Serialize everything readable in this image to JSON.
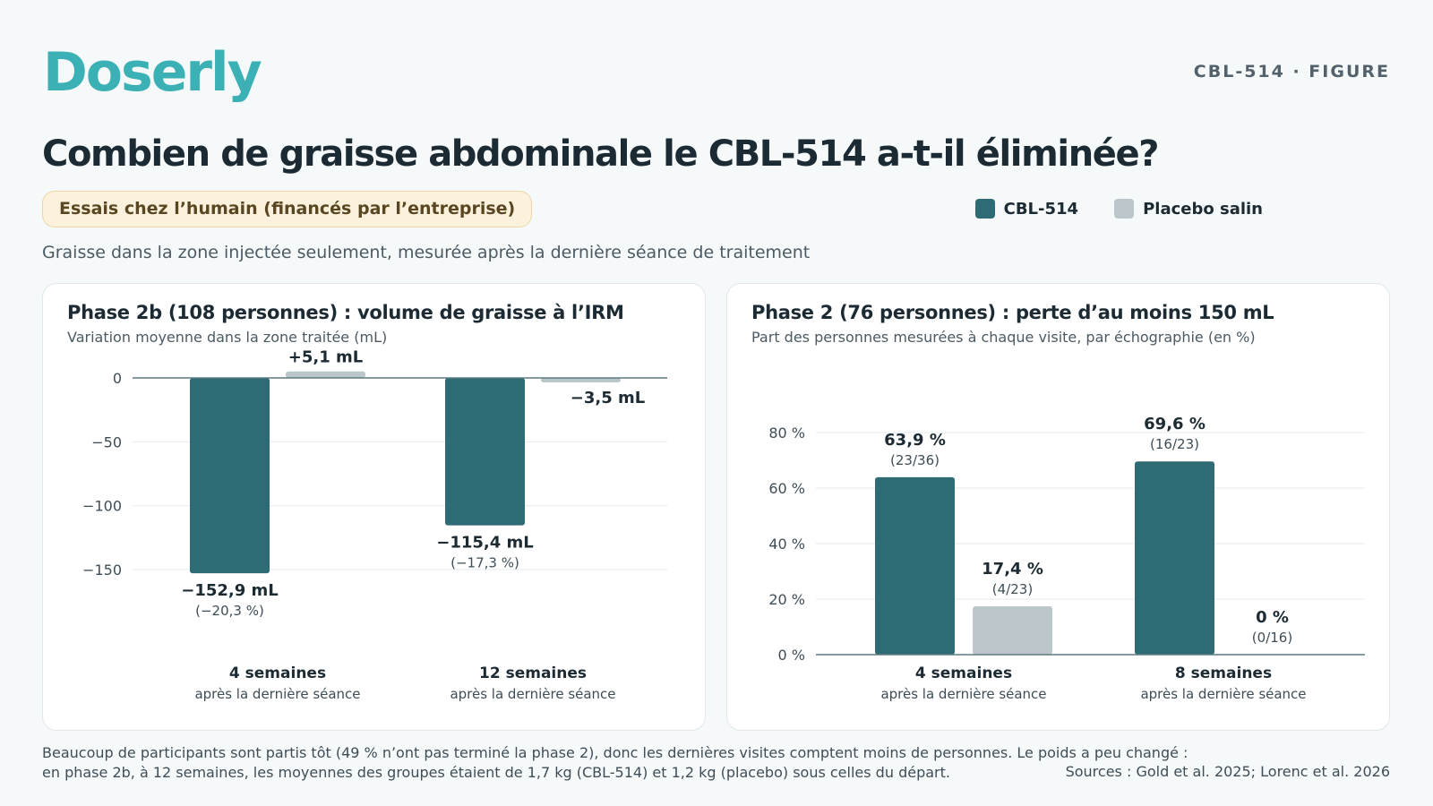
{
  "header": {
    "logo": "Doserly",
    "figure_tag": "CBL-514 · FIGURE",
    "title": "Combien de graisse abdominale le CBL-514 a-t-il éliminée?",
    "badge": "Essais chez l’humain (financés par l’entreprise)",
    "subtitle": "Graisse dans la zone injectée seulement, mesurée après la dernière séance de traitement"
  },
  "legend": [
    {
      "label": "CBL-514",
      "color": "#2e6b74"
    },
    {
      "label": "Placebo salin",
      "color": "#bac6ca"
    }
  ],
  "chart_data": [
    {
      "type": "bar",
      "title": "Phase 2b (108 personnes) : volume de graisse à l’IRM",
      "subtitle": "Variation moyenne dans la zone traitée (mL)",
      "categories": [
        {
          "label": "4 semaines",
          "sublabel": "après la dernière séance"
        },
        {
          "label": "12 semaines",
          "sublabel": "après la dernière séance"
        }
      ],
      "series": [
        {
          "name": "CBL-514",
          "color": "#2e6b74",
          "values": [
            -152.9,
            -115.4
          ],
          "labels": [
            "−152,9 mL",
            "−115,4 mL"
          ],
          "sublabels": [
            "(−20,3 %)",
            "(−17,3 %)"
          ]
        },
        {
          "name": "Placebo salin",
          "color": "#bac6ca",
          "values": [
            5.1,
            -3.5
          ],
          "labels": [
            "+5,1 mL",
            "−3,5 mL"
          ],
          "sublabels": [
            "",
            ""
          ]
        }
      ],
      "yticks": [
        0,
        -50,
        -100,
        -150
      ],
      "ytick_labels": [
        "0",
        "−50",
        "−100",
        "−150"
      ],
      "ylim": [
        -150,
        0
      ],
      "grid": true
    },
    {
      "type": "bar",
      "title": "Phase 2 (76 personnes) : perte d’au moins 150 mL",
      "subtitle": "Part des personnes mesurées à chaque visite, par échographie (en %)",
      "categories": [
        {
          "label": "4 semaines",
          "sublabel": "après la dernière séance"
        },
        {
          "label": "8 semaines",
          "sublabel": "après la dernière séance"
        }
      ],
      "series": [
        {
          "name": "CBL-514",
          "color": "#2e6b74",
          "values": [
            63.9,
            69.6
          ],
          "labels": [
            "63,9 %",
            "69,6 %"
          ],
          "sublabels": [
            "(23/36)",
            "(16/23)"
          ]
        },
        {
          "name": "Placebo salin",
          "color": "#bac6ca",
          "values": [
            17.4,
            0
          ],
          "labels": [
            "17,4 %",
            "0 %"
          ],
          "sublabels": [
            "(4/23)",
            "(0/16)"
          ]
        }
      ],
      "yticks": [
        0,
        20,
        40,
        60,
        80
      ],
      "ytick_labels": [
        "0 %",
        "20 %",
        "40 %",
        "60 %",
        "80 %"
      ],
      "ylim": [
        0,
        80
      ],
      "grid": true
    }
  ],
  "footer": {
    "note_line1": "Beaucoup de participants sont partis tôt (49 % n’ont pas terminé la phase 2), donc les dernières visites comptent moins de personnes. Le poids a peu changé :",
    "note_line2": "en phase 2b, à 12 semaines, les moyennes des groupes étaient de 1,7 kg (CBL-514) et 1,2 kg (placebo) sous celles du départ.",
    "sources": "Sources : Gold et al. 2025; Lorenc et al. 2026"
  }
}
